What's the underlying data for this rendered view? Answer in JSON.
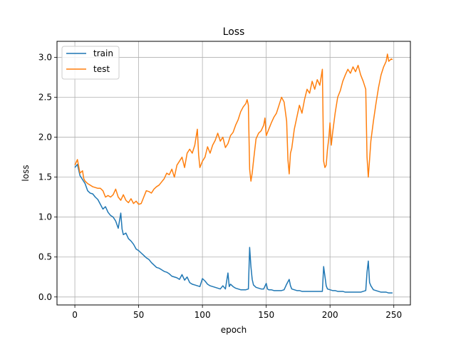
{
  "chart_data": {
    "type": "line",
    "title": "Loss",
    "xlabel": "epoch",
    "ylabel": "loss",
    "xlim": [
      -14,
      263
    ],
    "ylim": [
      -0.1,
      3.2
    ],
    "xticks": [
      0,
      50,
      100,
      150,
      200,
      250
    ],
    "yticks": [
      0.0,
      0.5,
      1.0,
      1.5,
      2.0,
      2.5,
      3.0
    ],
    "xtick_labels": [
      "0",
      "50",
      "100",
      "150",
      "200",
      "250"
    ],
    "ytick_labels": [
      "0.0",
      "0.5",
      "1.0",
      "1.5",
      "2.0",
      "2.5",
      "3.0"
    ],
    "grid": true,
    "legend_position": "top-left",
    "series": [
      {
        "name": "train",
        "color": "#1f77b4",
        "points": [
          [
            0,
            1.62
          ],
          [
            2,
            1.66
          ],
          [
            4,
            1.52
          ],
          [
            6,
            1.47
          ],
          [
            8,
            1.42
          ],
          [
            10,
            1.33
          ],
          [
            12,
            1.3
          ],
          [
            14,
            1.29
          ],
          [
            16,
            1.25
          ],
          [
            18,
            1.22
          ],
          [
            20,
            1.16
          ],
          [
            22,
            1.1
          ],
          [
            24,
            1.13
          ],
          [
            26,
            1.06
          ],
          [
            28,
            1.02
          ],
          [
            30,
            1.0
          ],
          [
            32,
            0.95
          ],
          [
            34,
            0.86
          ],
          [
            36,
            1.05
          ],
          [
            37,
            0.85
          ],
          [
            38,
            0.78
          ],
          [
            40,
            0.8
          ],
          [
            42,
            0.73
          ],
          [
            44,
            0.7
          ],
          [
            46,
            0.66
          ],
          [
            48,
            0.6
          ],
          [
            50,
            0.58
          ],
          [
            52,
            0.55
          ],
          [
            54,
            0.52
          ],
          [
            56,
            0.49
          ],
          [
            58,
            0.47
          ],
          [
            60,
            0.43
          ],
          [
            62,
            0.4
          ],
          [
            64,
            0.37
          ],
          [
            66,
            0.36
          ],
          [
            68,
            0.34
          ],
          [
            70,
            0.32
          ],
          [
            72,
            0.31
          ],
          [
            74,
            0.29
          ],
          [
            76,
            0.26
          ],
          [
            78,
            0.25
          ],
          [
            80,
            0.24
          ],
          [
            82,
            0.22
          ],
          [
            84,
            0.28
          ],
          [
            86,
            0.21
          ],
          [
            88,
            0.25
          ],
          [
            90,
            0.18
          ],
          [
            92,
            0.16
          ],
          [
            94,
            0.15
          ],
          [
            96,
            0.14
          ],
          [
            98,
            0.13
          ],
          [
            100,
            0.23
          ],
          [
            102,
            0.2
          ],
          [
            104,
            0.16
          ],
          [
            106,
            0.14
          ],
          [
            108,
            0.13
          ],
          [
            110,
            0.12
          ],
          [
            112,
            0.11
          ],
          [
            114,
            0.1
          ],
          [
            116,
            0.14
          ],
          [
            118,
            0.1
          ],
          [
            120,
            0.3
          ],
          [
            121,
            0.13
          ],
          [
            122,
            0.16
          ],
          [
            124,
            0.13
          ],
          [
            126,
            0.11
          ],
          [
            128,
            0.1
          ],
          [
            130,
            0.09
          ],
          [
            132,
            0.09
          ],
          [
            134,
            0.09
          ],
          [
            136,
            0.1
          ],
          [
            137,
            0.62
          ],
          [
            138,
            0.38
          ],
          [
            139,
            0.22
          ],
          [
            140,
            0.15
          ],
          [
            142,
            0.12
          ],
          [
            144,
            0.11
          ],
          [
            146,
            0.1
          ],
          [
            148,
            0.1
          ],
          [
            150,
            0.17
          ],
          [
            151,
            0.1
          ],
          [
            152,
            0.09
          ],
          [
            154,
            0.09
          ],
          [
            156,
            0.08
          ],
          [
            158,
            0.08
          ],
          [
            160,
            0.08
          ],
          [
            162,
            0.08
          ],
          [
            164,
            0.09
          ],
          [
            166,
            0.16
          ],
          [
            168,
            0.22
          ],
          [
            169,
            0.14
          ],
          [
            170,
            0.1
          ],
          [
            172,
            0.09
          ],
          [
            174,
            0.08
          ],
          [
            176,
            0.08
          ],
          [
            178,
            0.07
          ],
          [
            180,
            0.07
          ],
          [
            182,
            0.07
          ],
          [
            184,
            0.07
          ],
          [
            186,
            0.07
          ],
          [
            188,
            0.07
          ],
          [
            190,
            0.07
          ],
          [
            192,
            0.07
          ],
          [
            194,
            0.07
          ],
          [
            195,
            0.38
          ],
          [
            196,
            0.26
          ],
          [
            197,
            0.14
          ],
          [
            198,
            0.1
          ],
          [
            200,
            0.09
          ],
          [
            202,
            0.08
          ],
          [
            204,
            0.08
          ],
          [
            206,
            0.07
          ],
          [
            208,
            0.07
          ],
          [
            210,
            0.07
          ],
          [
            212,
            0.06
          ],
          [
            214,
            0.06
          ],
          [
            216,
            0.06
          ],
          [
            218,
            0.06
          ],
          [
            220,
            0.06
          ],
          [
            222,
            0.06
          ],
          [
            224,
            0.06
          ],
          [
            226,
            0.07
          ],
          [
            228,
            0.08
          ],
          [
            229,
            0.31
          ],
          [
            230,
            0.45
          ],
          [
            231,
            0.18
          ],
          [
            232,
            0.14
          ],
          [
            234,
            0.09
          ],
          [
            236,
            0.08
          ],
          [
            238,
            0.07
          ],
          [
            240,
            0.06
          ],
          [
            242,
            0.06
          ],
          [
            244,
            0.06
          ],
          [
            246,
            0.05
          ],
          [
            248,
            0.05
          ],
          [
            249,
            0.05
          ]
        ]
      },
      {
        "name": "test",
        "color": "#ff7f0e",
        "points": [
          [
            0,
            1.65
          ],
          [
            2,
            1.72
          ],
          [
            4,
            1.55
          ],
          [
            6,
            1.58
          ],
          [
            7,
            1.48
          ],
          [
            8,
            1.45
          ],
          [
            10,
            1.42
          ],
          [
            12,
            1.4
          ],
          [
            14,
            1.38
          ],
          [
            16,
            1.37
          ],
          [
            18,
            1.36
          ],
          [
            20,
            1.36
          ],
          [
            22,
            1.33
          ],
          [
            24,
            1.25
          ],
          [
            26,
            1.27
          ],
          [
            28,
            1.25
          ],
          [
            30,
            1.28
          ],
          [
            32,
            1.35
          ],
          [
            34,
            1.25
          ],
          [
            36,
            1.21
          ],
          [
            38,
            1.28
          ],
          [
            40,
            1.21
          ],
          [
            42,
            1.18
          ],
          [
            44,
            1.23
          ],
          [
            46,
            1.17
          ],
          [
            48,
            1.2
          ],
          [
            50,
            1.16
          ],
          [
            52,
            1.17
          ],
          [
            54,
            1.25
          ],
          [
            56,
            1.33
          ],
          [
            58,
            1.32
          ],
          [
            60,
            1.3
          ],
          [
            62,
            1.35
          ],
          [
            64,
            1.38
          ],
          [
            66,
            1.4
          ],
          [
            68,
            1.44
          ],
          [
            70,
            1.48
          ],
          [
            72,
            1.55
          ],
          [
            74,
            1.53
          ],
          [
            76,
            1.6
          ],
          [
            78,
            1.5
          ],
          [
            80,
            1.65
          ],
          [
            82,
            1.7
          ],
          [
            84,
            1.75
          ],
          [
            86,
            1.62
          ],
          [
            88,
            1.8
          ],
          [
            90,
            1.85
          ],
          [
            92,
            1.8
          ],
          [
            94,
            1.9
          ],
          [
            96,
            2.1
          ],
          [
            97,
            1.78
          ],
          [
            98,
            1.62
          ],
          [
            100,
            1.7
          ],
          [
            102,
            1.75
          ],
          [
            104,
            1.88
          ],
          [
            106,
            1.8
          ],
          [
            108,
            1.9
          ],
          [
            110,
            1.96
          ],
          [
            112,
            2.05
          ],
          [
            114,
            1.95
          ],
          [
            116,
            2.0
          ],
          [
            118,
            1.87
          ],
          [
            120,
            1.92
          ],
          [
            122,
            2.02
          ],
          [
            124,
            2.06
          ],
          [
            126,
            2.15
          ],
          [
            128,
            2.22
          ],
          [
            130,
            2.32
          ],
          [
            132,
            2.38
          ],
          [
            134,
            2.42
          ],
          [
            135,
            2.47
          ],
          [
            136,
            2.4
          ],
          [
            137,
            1.6
          ],
          [
            138,
            1.45
          ],
          [
            139,
            1.55
          ],
          [
            140,
            1.7
          ],
          [
            142,
            1.98
          ],
          [
            144,
            2.05
          ],
          [
            146,
            2.08
          ],
          [
            148,
            2.15
          ],
          [
            149,
            2.24
          ],
          [
            150,
            2.02
          ],
          [
            152,
            2.1
          ],
          [
            154,
            2.18
          ],
          [
            156,
            2.25
          ],
          [
            158,
            2.3
          ],
          [
            160,
            2.4
          ],
          [
            162,
            2.5
          ],
          [
            164,
            2.44
          ],
          [
            166,
            2.2
          ],
          [
            167,
            1.72
          ],
          [
            168,
            1.54
          ],
          [
            169,
            1.8
          ],
          [
            170,
            1.86
          ],
          [
            172,
            2.1
          ],
          [
            174,
            2.25
          ],
          [
            176,
            2.4
          ],
          [
            178,
            2.3
          ],
          [
            180,
            2.47
          ],
          [
            182,
            2.6
          ],
          [
            184,
            2.55
          ],
          [
            186,
            2.7
          ],
          [
            188,
            2.6
          ],
          [
            190,
            2.72
          ],
          [
            192,
            2.65
          ],
          [
            194,
            2.85
          ],
          [
            195,
            1.7
          ],
          [
            196,
            1.62
          ],
          [
            197,
            1.65
          ],
          [
            198,
            1.85
          ],
          [
            199,
            1.98
          ],
          [
            200,
            2.18
          ],
          [
            201,
            1.9
          ],
          [
            202,
            2.05
          ],
          [
            204,
            2.3
          ],
          [
            206,
            2.5
          ],
          [
            208,
            2.58
          ],
          [
            210,
            2.7
          ],
          [
            212,
            2.78
          ],
          [
            214,
            2.85
          ],
          [
            216,
            2.8
          ],
          [
            218,
            2.88
          ],
          [
            220,
            2.82
          ],
          [
            222,
            2.9
          ],
          [
            224,
            2.78
          ],
          [
            226,
            2.7
          ],
          [
            227,
            2.65
          ],
          [
            228,
            2.6
          ],
          [
            229,
            1.75
          ],
          [
            230,
            1.5
          ],
          [
            231,
            1.72
          ],
          [
            232,
            1.95
          ],
          [
            234,
            2.2
          ],
          [
            236,
            2.42
          ],
          [
            238,
            2.62
          ],
          [
            240,
            2.78
          ],
          [
            242,
            2.88
          ],
          [
            244,
            2.95
          ],
          [
            245,
            3.04
          ],
          [
            246,
            2.95
          ],
          [
            248,
            2.98
          ],
          [
            249,
            2.97
          ]
        ]
      }
    ]
  }
}
